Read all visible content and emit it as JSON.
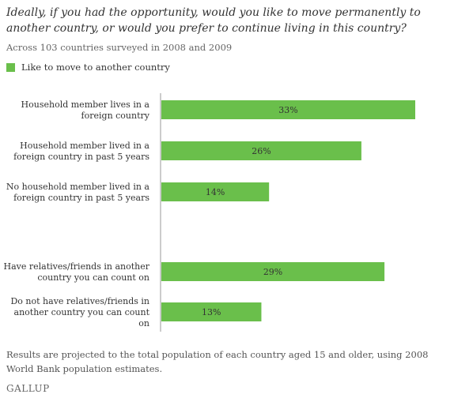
{
  "header": {
    "title": "Ideally, if you had the opportunity, would you like to move permanently to another country, or would you prefer to continue living in this country?",
    "subtitle": "Across 103 countries surveyed in 2008 and 2009"
  },
  "footer": {
    "note": "Results are projected to the total population of each country aged 15 and older, using 2008 World Bank population estimates.",
    "brand": "GALLUP"
  },
  "colors": {
    "bar": "#6abf4b",
    "axis": "#999999"
  },
  "chart_data": {
    "type": "bar",
    "orientation": "horizontal",
    "title": "Ideally, if you had the opportunity, would you like to move permanently to another country, or would you prefer to continue living in this country?",
    "legend": {
      "position": "top-left",
      "entries": [
        "Like to move to another country"
      ]
    },
    "categories": [
      [
        "Household member lives in a",
        "foreign country"
      ],
      [
        "Household member lived in a",
        "foreign country in past 5 years"
      ],
      [
        "No household member lived in a",
        "foreign country in past 5 years"
      ],
      [
        "Have relatives/friends in another",
        "country you can count on"
      ],
      [
        "Do not have relatives/friends in",
        "another country you can count",
        "on"
      ]
    ],
    "series": [
      {
        "name": "Like to move to another country",
        "values": [
          33,
          26,
          14,
          29,
          13
        ],
        "labels": [
          "33%",
          "26%",
          "14%",
          "29%",
          "13%"
        ]
      }
    ],
    "xlim": [
      0,
      37
    ],
    "grid": false,
    "value_unit": "%"
  }
}
